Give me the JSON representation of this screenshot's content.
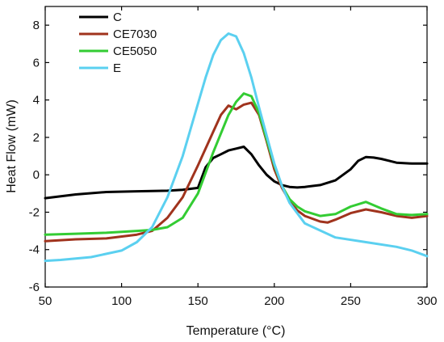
{
  "chart_data": {
    "type": "line",
    "title": "",
    "xlabel": "Temperature (°C)",
    "ylabel": "Heat Flow (mW)",
    "xlim": [
      50,
      300
    ],
    "ylim": [
      -6,
      9
    ],
    "xticks": [
      50,
      100,
      150,
      200,
      250,
      300
    ],
    "yticks": [
      -6,
      -4,
      -2,
      0,
      2,
      4,
      6,
      8
    ],
    "grid": false,
    "legend": "top-left",
    "series": [
      {
        "name": "C",
        "color": "#000000",
        "x": [
          50,
          70,
          90,
          110,
          130,
          140,
          150,
          155,
          160,
          165,
          170,
          175,
          180,
          185,
          190,
          195,
          200,
          205,
          210,
          215,
          220,
          230,
          240,
          250,
          255,
          260,
          265,
          270,
          275,
          280,
          290,
          300
        ],
        "y": [
          -1.25,
          -1.05,
          -0.92,
          -0.88,
          -0.85,
          -0.8,
          -0.7,
          0.4,
          0.9,
          1.1,
          1.3,
          1.4,
          1.5,
          1.1,
          0.5,
          0.0,
          -0.35,
          -0.55,
          -0.65,
          -0.68,
          -0.65,
          -0.55,
          -0.3,
          0.3,
          0.75,
          0.95,
          0.92,
          0.85,
          0.75,
          0.65,
          0.6,
          0.6
        ]
      },
      {
        "name": "CE7030",
        "color": "#a0331d",
        "x": [
          50,
          70,
          90,
          110,
          120,
          130,
          140,
          150,
          160,
          165,
          170,
          175,
          180,
          185,
          190,
          195,
          200,
          205,
          210,
          215,
          220,
          230,
          235,
          240,
          250,
          260,
          270,
          280,
          290,
          300
        ],
        "y": [
          -3.55,
          -3.45,
          -3.4,
          -3.2,
          -3.0,
          -2.3,
          -1.2,
          0.5,
          2.3,
          3.2,
          3.7,
          3.5,
          3.75,
          3.85,
          3.2,
          1.8,
          0.3,
          -0.7,
          -1.4,
          -1.9,
          -2.2,
          -2.5,
          -2.55,
          -2.4,
          -2.05,
          -1.85,
          -2.0,
          -2.2,
          -2.3,
          -2.2
        ]
      },
      {
        "name": "CE5050",
        "color": "#33cc33",
        "x": [
          50,
          70,
          90,
          110,
          120,
          130,
          140,
          150,
          160,
          170,
          175,
          180,
          185,
          190,
          195,
          200,
          205,
          210,
          215,
          220,
          230,
          240,
          250,
          260,
          270,
          280,
          290,
          300
        ],
        "y": [
          -3.2,
          -3.15,
          -3.1,
          -3.0,
          -2.95,
          -2.8,
          -2.3,
          -1.0,
          1.2,
          3.2,
          3.9,
          4.35,
          4.2,
          3.3,
          1.9,
          0.5,
          -0.6,
          -1.3,
          -1.7,
          -1.95,
          -2.2,
          -2.1,
          -1.7,
          -1.45,
          -1.8,
          -2.1,
          -2.15,
          -2.1
        ]
      },
      {
        "name": "E",
        "color": "#5bd0f0",
        "x": [
          50,
          60,
          80,
          100,
          110,
          120,
          130,
          140,
          150,
          155,
          160,
          165,
          170,
          175,
          180,
          185,
          190,
          195,
          200,
          205,
          210,
          220,
          240,
          260,
          280,
          290,
          300
        ],
        "y": [
          -4.6,
          -4.55,
          -4.4,
          -4.05,
          -3.6,
          -2.8,
          -1.2,
          1.0,
          3.8,
          5.2,
          6.4,
          7.2,
          7.55,
          7.4,
          6.5,
          5.2,
          3.6,
          2.1,
          0.6,
          -0.6,
          -1.5,
          -2.6,
          -3.35,
          -3.6,
          -3.85,
          -4.05,
          -4.35
        ]
      }
    ]
  }
}
